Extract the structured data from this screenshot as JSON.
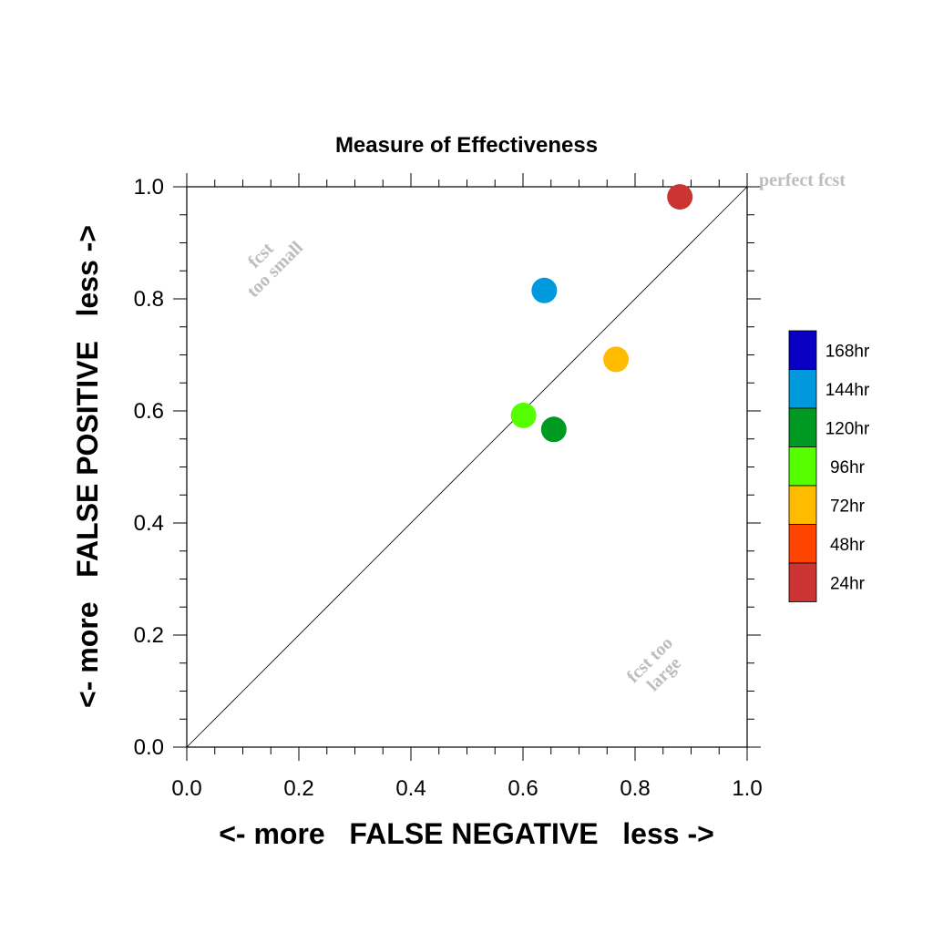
{
  "chart_data": {
    "type": "scatter",
    "title": "Measure of Effectiveness",
    "xlabel": "<- more   FALSE NEGATIVE   less ->",
    "ylabel": "<- more   FALSE POSITIVE   less ->",
    "xlim": [
      0.0,
      1.0
    ],
    "ylim": [
      0.0,
      1.0
    ],
    "x_ticks": [
      "0.0",
      "0.2",
      "0.4",
      "0.6",
      "0.8",
      "1.0"
    ],
    "y_ticks": [
      "0.0",
      "0.2",
      "0.4",
      "0.6",
      "0.8",
      "1.0"
    ],
    "grid": false,
    "diagonal_line": true,
    "annotations": [
      {
        "lines": [
          "perfect fcst"
        ],
        "position": "top-right"
      },
      {
        "lines": [
          "fcst",
          "too small"
        ],
        "position": "upper-left"
      },
      {
        "lines": [
          "fcst too",
          "large"
        ],
        "position": "lower-right"
      }
    ],
    "legend_position": "right",
    "legend": [
      {
        "label": "168hr",
        "color": "#0a00c4"
      },
      {
        "label": "144hr",
        "color": "#0099dd"
      },
      {
        "label": "120hr",
        "color": "#009922"
      },
      {
        "label": "96hr",
        "color": "#55ff00"
      },
      {
        "label": "72hr",
        "color": "#ffbb00"
      },
      {
        "label": "48hr",
        "color": "#ff4400"
      },
      {
        "label": "24hr",
        "color": "#cc3333"
      }
    ],
    "points": [
      {
        "x": 0.88,
        "y": 0.982,
        "color": "#cc3333"
      },
      {
        "x": 0.766,
        "y": 0.692,
        "color": "#ffbb00"
      },
      {
        "x": 0.601,
        "y": 0.592,
        "color": "#55ff00"
      },
      {
        "x": 0.655,
        "y": 0.567,
        "color": "#009922"
      },
      {
        "x": 0.638,
        "y": 0.815,
        "color": "#0099dd"
      }
    ]
  }
}
